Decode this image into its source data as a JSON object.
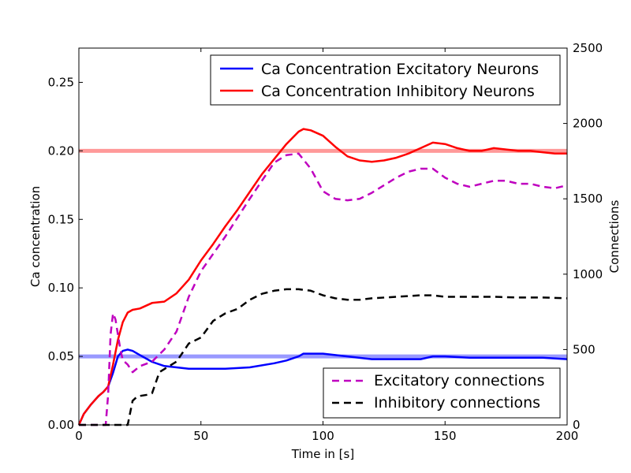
{
  "chart_data": {
    "type": "line",
    "xlabel": "Time in [s]",
    "ylabel_left": "Ca concentration",
    "ylabel_right": "Connections",
    "xlim": [
      0,
      200
    ],
    "ylim_left": [
      0,
      0.275
    ],
    "ylim_right": [
      0,
      2500
    ],
    "x_ticks": [
      0,
      50,
      100,
      150,
      200
    ],
    "x_tick_labels": [
      "0",
      "50",
      "100",
      "150",
      "200"
    ],
    "y_left_ticks": [
      0,
      0.05,
      0.1,
      0.15,
      0.2,
      0.25
    ],
    "y_left_tick_labels": [
      "0.00",
      "0.05",
      "0.10",
      "0.15",
      "0.20",
      "0.25"
    ],
    "y_right_ticks": [
      0,
      500,
      1000,
      1500,
      2000,
      2500
    ],
    "y_right_tick_labels": [
      "0",
      "500",
      "1000",
      "1500",
      "2000",
      "2500"
    ],
    "grid": false,
    "reference_lines": [
      {
        "y": 0.05,
        "axis": "left",
        "color": "#9999ff"
      },
      {
        "y": 0.2,
        "axis": "left",
        "color": "#ff9999"
      }
    ],
    "legends": [
      {
        "placement": "top-right",
        "entries": [
          "Ca Concentration Excitatory Neurons",
          "Ca Concentration Inhibitory Neurons"
        ]
      },
      {
        "placement": "bottom-right",
        "entries": [
          "Excitatory connections",
          "Inhibitory connections"
        ]
      }
    ],
    "series": [
      {
        "name": "Ca Concentration Excitatory Neurons",
        "axis": "left",
        "color": "#0000ff",
        "style": "solid",
        "x": [
          0,
          2,
          5,
          8,
          10,
          12,
          14,
          16,
          18,
          20,
          22,
          25,
          30,
          35,
          40,
          45,
          50,
          60,
          70,
          80,
          85,
          90,
          92,
          95,
          100,
          110,
          120,
          130,
          140,
          145,
          150,
          160,
          170,
          180,
          190,
          200
        ],
        "values": [
          0.0,
          0.008,
          0.015,
          0.021,
          0.024,
          0.028,
          0.038,
          0.05,
          0.054,
          0.055,
          0.054,
          0.051,
          0.046,
          0.043,
          0.042,
          0.041,
          0.041,
          0.041,
          0.042,
          0.045,
          0.047,
          0.05,
          0.052,
          0.052,
          0.052,
          0.05,
          0.048,
          0.048,
          0.048,
          0.05,
          0.05,
          0.049,
          0.049,
          0.049,
          0.049,
          0.048
        ]
      },
      {
        "name": "Ca Concentration Inhibitory Neurons",
        "axis": "left",
        "color": "#ff0000",
        "style": "solid",
        "x": [
          0,
          2,
          5,
          8,
          10,
          12,
          14,
          16,
          18,
          20,
          22,
          25,
          30,
          35,
          40,
          45,
          50,
          55,
          60,
          65,
          70,
          75,
          80,
          85,
          90,
          92,
          95,
          100,
          105,
          110,
          115,
          120,
          125,
          130,
          135,
          140,
          145,
          150,
          155,
          160,
          165,
          170,
          175,
          180,
          185,
          190,
          195,
          200
        ],
        "values": [
          0.0,
          0.008,
          0.015,
          0.021,
          0.024,
          0.028,
          0.044,
          0.062,
          0.075,
          0.082,
          0.084,
          0.085,
          0.089,
          0.09,
          0.096,
          0.106,
          0.12,
          0.132,
          0.145,
          0.157,
          0.17,
          0.183,
          0.194,
          0.205,
          0.214,
          0.216,
          0.215,
          0.211,
          0.203,
          0.196,
          0.193,
          0.192,
          0.193,
          0.195,
          0.198,
          0.202,
          0.206,
          0.205,
          0.202,
          0.2,
          0.2,
          0.202,
          0.201,
          0.2,
          0.2,
          0.199,
          0.198,
          0.198
        ]
      },
      {
        "name": "Excitatory connections",
        "axis": "right",
        "color": "#bf00bf",
        "style": "dashed",
        "x": [
          0,
          11,
          12,
          13,
          14,
          15,
          16,
          17,
          18,
          20,
          22,
          25,
          30,
          35,
          40,
          45,
          50,
          60,
          70,
          80,
          85,
          90,
          95,
          100,
          105,
          110,
          115,
          120,
          130,
          135,
          140,
          145,
          150,
          155,
          160,
          165,
          170,
          175,
          180,
          185,
          190,
          195,
          200
        ],
        "values": [
          0,
          0,
          200,
          600,
          740,
          700,
          600,
          500,
          430,
          400,
          350,
          390,
          420,
          500,
          620,
          850,
          1020,
          1250,
          1500,
          1740,
          1790,
          1800,
          1700,
          1550,
          1500,
          1490,
          1500,
          1540,
          1640,
          1680,
          1700,
          1700,
          1640,
          1600,
          1580,
          1600,
          1620,
          1620,
          1600,
          1600,
          1580,
          1570,
          1590
        ]
      },
      {
        "name": "Inhibitory connections",
        "axis": "right",
        "color": "#000000",
        "style": "dashed",
        "x": [
          0,
          11,
          12,
          20,
          22,
          24,
          28,
          30,
          33,
          36,
          40,
          45,
          50,
          55,
          60,
          65,
          70,
          75,
          80,
          85,
          90,
          95,
          100,
          105,
          110,
          115,
          120,
          130,
          140,
          145,
          150,
          160,
          170,
          180,
          190,
          200
        ],
        "values": [
          0,
          0,
          0,
          0,
          160,
          190,
          200,
          210,
          350,
          380,
          420,
          540,
          580,
          690,
          740,
          770,
          830,
          870,
          890,
          900,
          900,
          890,
          860,
          840,
          830,
          830,
          840,
          850,
          860,
          860,
          850,
          850,
          850,
          845,
          845,
          840
        ]
      }
    ]
  }
}
